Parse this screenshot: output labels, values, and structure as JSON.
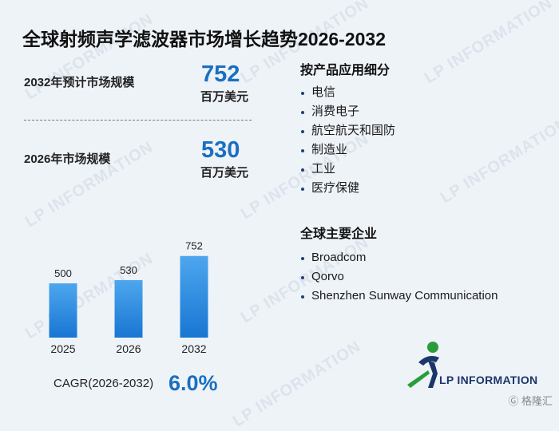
{
  "title": "全球射频声学滤波器市场增长趋势2026-2032",
  "stats": {
    "forecast": {
      "label": "2032年预计市场规模",
      "value": "752",
      "unit": "百万美元"
    },
    "current": {
      "label": "2026年市场规模",
      "value": "530",
      "unit": "百万美元"
    }
  },
  "chart_data": {
    "type": "bar",
    "categories": [
      "2025",
      "2026",
      "2032"
    ],
    "values": [
      500,
      530,
      752
    ],
    "title": "",
    "xlabel": "",
    "ylabel": "",
    "ylim": [
      0,
      800
    ],
    "grid": false,
    "legend": "none",
    "bar_color_top": "#4da6ee",
    "bar_color_bottom": "#1976d2"
  },
  "cagr": {
    "label": "CAGR(2026-2032)",
    "value": "6.0%"
  },
  "segments": {
    "title": "按产品应用细分",
    "items": [
      "电信",
      "消费电子",
      "航空航天和国防",
      "制造业",
      "工业",
      "医疗保健"
    ]
  },
  "companies": {
    "title": "全球主要企业",
    "items": [
      "Broadcom",
      "Qorvo",
      "Shenzhen Sunway Communication"
    ]
  },
  "logo": {
    "text": "LP INFORMATION",
    "icon": "lp-runner-logo-icon"
  },
  "watermark": {
    "text": "LP INFORMATION"
  },
  "source_badge": {
    "text": "格隆汇",
    "icon": "gelonghui-icon"
  },
  "colors": {
    "accent": "#1a6fc0",
    "background": "#eef3f8",
    "logo_navy": "#1b3668",
    "logo_green": "#2a9d3a"
  }
}
